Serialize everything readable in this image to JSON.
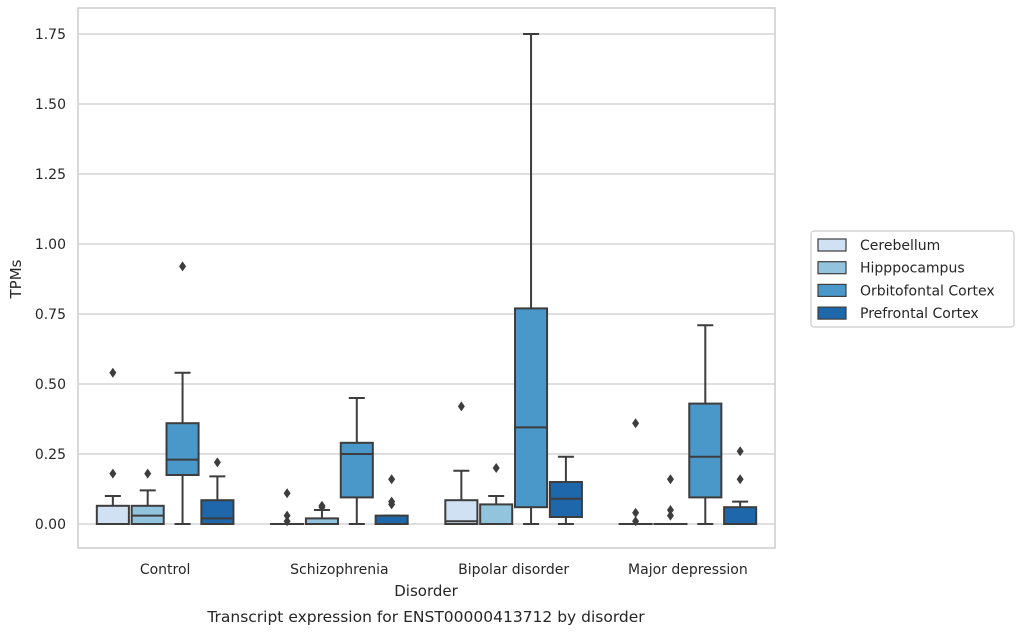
{
  "chart_data": {
    "type": "box",
    "caption": "Transcript expression for ENST00000413712 by disorder",
    "xlabel": "Disorder",
    "ylabel": "TPMs",
    "ylim": [
      -0.08,
      1.84
    ],
    "yticks": [
      0.0,
      0.25,
      0.5,
      0.75,
      1.0,
      1.25,
      1.5,
      1.75
    ],
    "ytick_labels": [
      "0.00",
      "0.25",
      "0.50",
      "0.75",
      "1.00",
      "1.25",
      "1.50",
      "1.75"
    ],
    "grid": "horizontal",
    "legend_position": "right",
    "categories": [
      "Control",
      "Schizophrenia",
      "Bipolar disorder",
      "Major depression"
    ],
    "series": [
      {
        "name": "Cerebellum",
        "color": "#cfe1f2",
        "boxes": [
          {
            "q1": 0.0,
            "median": 0.0,
            "q3": 0.065,
            "wlo": 0.0,
            "whi": 0.1,
            "outliers": [
              0.18,
              0.54
            ]
          },
          {
            "q1": 0.0,
            "median": 0.0,
            "q3": 0.0,
            "wlo": 0.0,
            "whi": 0.0,
            "outliers": [
              0.01,
              0.03,
              0.11
            ]
          },
          {
            "q1": 0.0,
            "median": 0.01,
            "q3": 0.085,
            "wlo": 0.0,
            "whi": 0.19,
            "outliers": [
              0.42
            ]
          },
          {
            "q1": 0.0,
            "median": 0.0,
            "q3": 0.0,
            "wlo": 0.0,
            "whi": 0.0,
            "outliers": [
              0.01,
              0.04,
              0.36
            ]
          }
        ]
      },
      {
        "name": "Hipppocampus",
        "color": "#93c4de",
        "boxes": [
          {
            "q1": 0.0,
            "median": 0.03,
            "q3": 0.065,
            "wlo": 0.0,
            "whi": 0.12,
            "outliers": [
              0.18
            ]
          },
          {
            "q1": 0.0,
            "median": 0.0,
            "q3": 0.02,
            "wlo": 0.0,
            "whi": 0.05,
            "outliers": [
              0.06,
              0.065
            ]
          },
          {
            "q1": 0.0,
            "median": 0.0,
            "q3": 0.07,
            "wlo": 0.0,
            "whi": 0.1,
            "outliers": [
              0.2
            ]
          },
          {
            "q1": 0.0,
            "median": 0.0,
            "q3": 0.0,
            "wlo": 0.0,
            "whi": 0.0,
            "outliers": [
              0.03,
              0.05,
              0.16
            ]
          }
        ]
      },
      {
        "name": "Orbitofontal Cortex",
        "color": "#4a98c9",
        "boxes": [
          {
            "q1": 0.175,
            "median": 0.23,
            "q3": 0.36,
            "wlo": 0.0,
            "whi": 0.54,
            "outliers": [
              0.92
            ]
          },
          {
            "q1": 0.095,
            "median": 0.25,
            "q3": 0.29,
            "wlo": 0.0,
            "whi": 0.45,
            "outliers": []
          },
          {
            "q1": 0.06,
            "median": 0.345,
            "q3": 0.77,
            "wlo": 0.0,
            "whi": 1.75,
            "outliers": []
          },
          {
            "q1": 0.095,
            "median": 0.24,
            "q3": 0.43,
            "wlo": 0.0,
            "whi": 0.71,
            "outliers": []
          }
        ]
      },
      {
        "name": "Prefrontal Cortex",
        "color": "#1f67ab",
        "boxes": [
          {
            "q1": 0.0,
            "median": 0.02,
            "q3": 0.085,
            "wlo": 0.0,
            "whi": 0.17,
            "outliers": [
              0.22
            ]
          },
          {
            "q1": 0.0,
            "median": 0.0,
            "q3": 0.03,
            "wlo": 0.0,
            "whi": 0.03,
            "outliers": [
              0.07,
              0.08,
              0.16
            ]
          },
          {
            "q1": 0.025,
            "median": 0.09,
            "q3": 0.15,
            "wlo": 0.0,
            "whi": 0.24,
            "outliers": []
          },
          {
            "q1": 0.0,
            "median": 0.0,
            "q3": 0.06,
            "wlo": 0.0,
            "whi": 0.08,
            "outliers": [
              0.16,
              0.26
            ]
          }
        ]
      }
    ]
  }
}
